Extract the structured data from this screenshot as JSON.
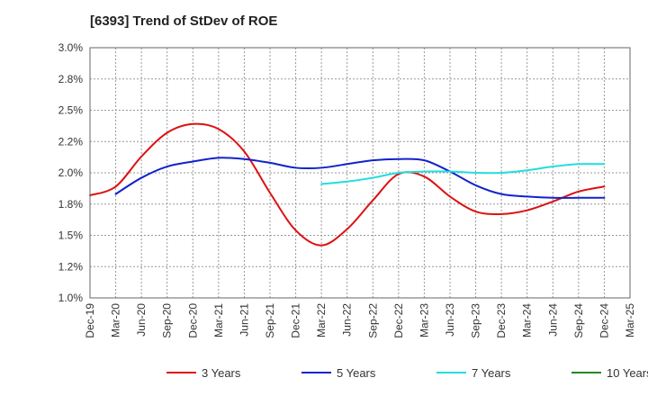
{
  "chart_data": {
    "type": "line",
    "title": "[6393]  Trend of StDev of ROE",
    "xlabel": "",
    "ylabel": "",
    "ylim": [
      1.0,
      3.0
    ],
    "y_ticks": [
      "1.0%",
      "1.2%",
      "1.5%",
      "1.8%",
      "2.0%",
      "2.2%",
      "2.5%",
      "2.8%",
      "3.0%"
    ],
    "x_ticks": [
      "Dec-19",
      "Mar-20",
      "Jun-20",
      "Sep-20",
      "Dec-20",
      "Mar-21",
      "Jun-21",
      "Sep-21",
      "Dec-21",
      "Mar-22",
      "Jun-22",
      "Sep-22",
      "Dec-22",
      "Mar-23",
      "Jun-23",
      "Sep-23",
      "Dec-23",
      "Mar-24",
      "Jun-24",
      "Sep-24",
      "Dec-24",
      "Mar-25"
    ],
    "grid": true,
    "legend_position": "bottom",
    "series": [
      {
        "name": "3 Years",
        "color": "#dd1111",
        "x": [
          "Dec-19",
          "Mar-20",
          "Jun-20",
          "Sep-20",
          "Dec-20",
          "Mar-21",
          "Jun-21",
          "Sep-21",
          "Dec-21",
          "Mar-22",
          "Jun-22",
          "Sep-22",
          "Dec-22",
          "Mar-23",
          "Jun-23",
          "Sep-23",
          "Dec-23",
          "Mar-24",
          "Jun-24",
          "Sep-24",
          "Dec-24"
        ],
        "values": [
          1.82,
          1.89,
          2.13,
          2.32,
          2.39,
          2.35,
          2.17,
          1.84,
          1.54,
          1.42,
          1.55,
          1.78,
          1.99,
          1.97,
          1.81,
          1.69,
          1.67,
          1.7,
          1.77,
          1.85,
          1.89
        ]
      },
      {
        "name": "5 Years",
        "color": "#1122cc",
        "x": [
          "Mar-20",
          "Jun-20",
          "Sep-20",
          "Dec-20",
          "Mar-21",
          "Jun-21",
          "Sep-21",
          "Dec-21",
          "Mar-22",
          "Jun-22",
          "Sep-22",
          "Dec-22",
          "Mar-23",
          "Jun-23",
          "Sep-23",
          "Dec-23",
          "Mar-24",
          "Jun-24",
          "Sep-24",
          "Dec-24"
        ],
        "values": [
          1.83,
          1.96,
          2.05,
          2.09,
          2.12,
          2.11,
          2.08,
          2.04,
          2.04,
          2.07,
          2.1,
          2.11,
          2.1,
          2.01,
          1.9,
          1.83,
          1.81,
          1.8,
          1.8,
          1.8
        ]
      },
      {
        "name": "7 Years",
        "color": "#22dddd",
        "x": [
          "Mar-22",
          "Jun-22",
          "Sep-22",
          "Dec-22",
          "Mar-23",
          "Jun-23",
          "Sep-23",
          "Dec-23",
          "Mar-24",
          "Jun-24",
          "Sep-24",
          "Dec-24"
        ],
        "values": [
          1.91,
          1.93,
          1.96,
          2.0,
          2.01,
          2.01,
          2.0,
          2.0,
          2.02,
          2.05,
          2.07,
          2.07
        ]
      },
      {
        "name": "10 Years",
        "color": "#228822",
        "x": [],
        "values": []
      }
    ]
  }
}
